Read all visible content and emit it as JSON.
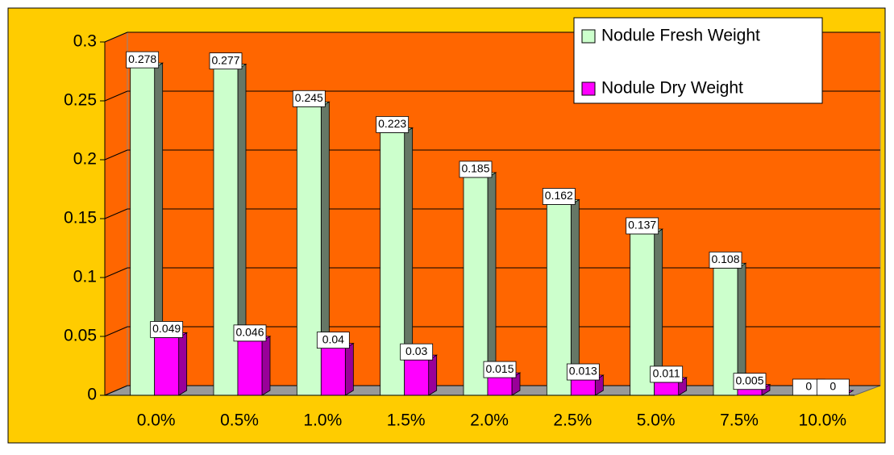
{
  "chart_data": {
    "type": "bar",
    "categories": [
      "0.0%",
      "0.5%",
      "1.0%",
      "1.5%",
      "2.0%",
      "2.5%",
      "5.0%",
      "7.5%",
      "10.0%"
    ],
    "series": [
      {
        "name": "Nodule Fresh Weight",
        "color": "#CCFFCC",
        "values": [
          0.278,
          0.277,
          0.245,
          0.223,
          0.185,
          0.162,
          0.137,
          0.108,
          0
        ]
      },
      {
        "name": "Nodule Dry Weight",
        "color": "#FF00FF",
        "values": [
          0.049,
          0.046,
          0.04,
          0.03,
          0.015,
          0.013,
          0.011,
          0.005,
          0
        ]
      }
    ],
    "ylim": [
      0,
      0.3
    ],
    "yticks": [
      0,
      0.05,
      0.1,
      0.15,
      0.2,
      0.25,
      0.3
    ],
    "grid": true,
    "legend": "top-right"
  }
}
